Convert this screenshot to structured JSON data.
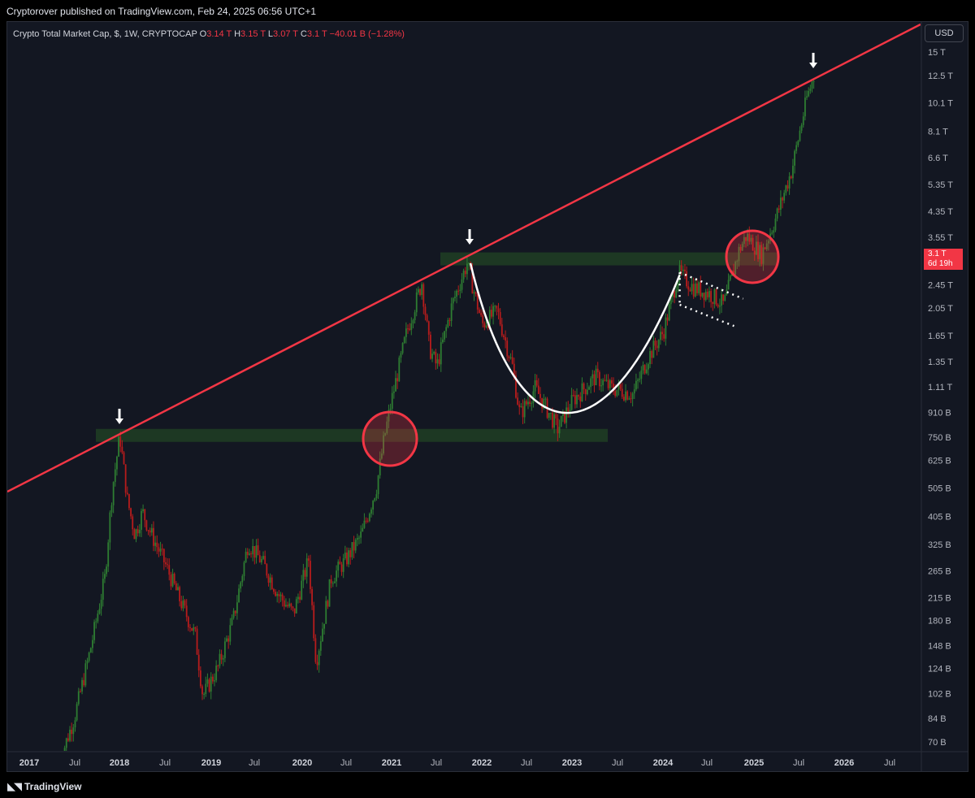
{
  "header": {
    "published": "Cryptorover published on TradingView.com, Feb 24, 2025 06:56 UTC+1"
  },
  "legend": {
    "title": "Crypto Total Market Cap, $, 1W, CRYPTOCAP",
    "open_label": "O",
    "open": "3.14 T",
    "high_label": "H",
    "high": "3.15 T",
    "low_label": "L",
    "low": "3.07 T",
    "close_label": "C",
    "close": "3.1 T",
    "change": "−40.01 B (−1.28%)"
  },
  "currency_button": "USD",
  "price_tag": {
    "value": "3.1 T",
    "countdown": "6d 19h"
  },
  "footer": {
    "brand": "TradingView"
  },
  "colors": {
    "background": "#131722",
    "up": "#2e7d32",
    "down": "#b71c1c",
    "trendline": "#f23645",
    "zone": "#1e3a24"
  },
  "chart_data": {
    "type": "candlestick",
    "scale": "log",
    "y_ticks": [
      "15 T",
      "12.5 T",
      "10.1 T",
      "8.1 T",
      "6.6 T",
      "5.35 T",
      "4.35 T",
      "3.55 T",
      "2.45 T",
      "2.05 T",
      "1.65 T",
      "1.35 T",
      "1.11 T",
      "910 B",
      "750 B",
      "625 B",
      "505 B",
      "405 B",
      "325 B",
      "265 B",
      "215 B",
      "180 B",
      "148 B",
      "124 B",
      "102 B",
      "84 B",
      "70 B"
    ],
    "x_ticks": [
      "2017",
      "Jul",
      "2018",
      "Jul",
      "2019",
      "Jul",
      "2020",
      "Jul",
      "2021",
      "Jul",
      "2022",
      "Jul",
      "2023",
      "Jul",
      "2024",
      "Jul",
      "2025",
      "Jul",
      "2026",
      "Jul"
    ],
    "series": [
      {
        "points": [
          [
            "2017-05",
            60
          ],
          [
            "2017-07",
            85
          ],
          [
            "2017-09",
            140
          ],
          [
            "2017-11",
            250
          ],
          [
            "2017-12",
            500
          ],
          [
            "2018-01",
            760
          ],
          [
            "2018-02",
            460
          ],
          [
            "2018-03",
            350
          ],
          [
            "2018-04",
            420
          ],
          [
            "2018-05",
            360
          ],
          [
            "2018-07",
            280
          ],
          [
            "2018-09",
            210
          ],
          [
            "2018-11",
            160
          ],
          [
            "2018-12",
            100
          ],
          [
            "2019-02",
            125
          ],
          [
            "2019-04",
            180
          ],
          [
            "2019-06",
            330
          ],
          [
            "2019-08",
            280
          ],
          [
            "2019-10",
            220
          ],
          [
            "2019-12",
            190
          ],
          [
            "2020-02",
            290
          ],
          [
            "2020-03",
            130
          ],
          [
            "2020-05",
            250
          ],
          [
            "2020-07",
            290
          ],
          [
            "2020-09",
            350
          ],
          [
            "2020-11",
            510
          ],
          [
            "2020-12",
            740
          ],
          [
            "2021-01",
            1000
          ],
          [
            "2021-03",
            1700
          ],
          [
            "2021-05",
            2500
          ],
          [
            "2021-06",
            1500
          ],
          [
            "2021-07",
            1300
          ],
          [
            "2021-09",
            2100
          ],
          [
            "2021-11",
            2900
          ],
          [
            "2022-01",
            1800
          ],
          [
            "2022-03",
            2000
          ],
          [
            "2022-05",
            1300
          ],
          [
            "2022-06",
            890
          ],
          [
            "2022-08",
            1100
          ],
          [
            "2022-11",
            800
          ],
          [
            "2023-01",
            1000
          ],
          [
            "2023-04",
            1200
          ],
          [
            "2023-06",
            1100
          ],
          [
            "2023-09",
            1050
          ],
          [
            "2023-11",
            1400
          ],
          [
            "2024-01",
            1700
          ],
          [
            "2024-03",
            2700
          ],
          [
            "2024-05",
            2400
          ],
          [
            "2024-07",
            2300
          ],
          [
            "2024-09",
            2100
          ],
          [
            "2024-11",
            3200
          ],
          [
            "2024-12",
            3600
          ],
          [
            "2025-02",
            3100
          ],
          [
            "2025-04",
            4200
          ],
          [
            "2025-06",
            6000
          ],
          [
            "2025-08",
            10500
          ],
          [
            "2025-09",
            12500
          ]
        ]
      }
    ],
    "annotations": {
      "resistance_trendline": "ascending red line touching 2018, 2021 and 2025 tops",
      "support_zones": [
        "~760 B",
        "~3.0 T"
      ],
      "circles": [
        "2021-01 breakout",
        "2024-12 breakout"
      ],
      "curve": "cup formation 2021-11 to 2024-03",
      "flag": "dotted bull flag 2024-03 to 2024-10"
    }
  }
}
